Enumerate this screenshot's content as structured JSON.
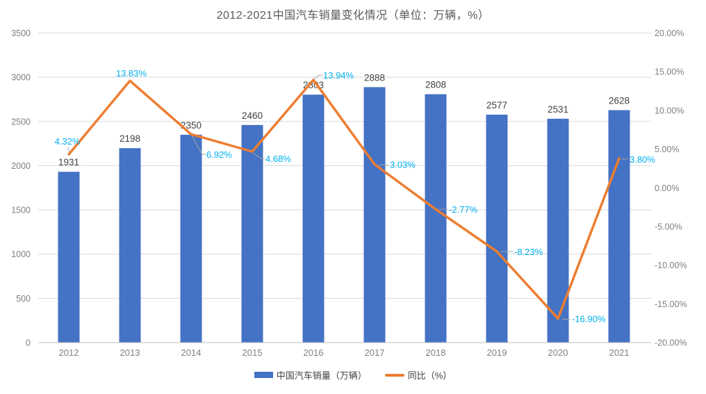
{
  "title": "2012-2021中国汽车销量变化情况（单位：万辆，%）",
  "colors": {
    "bar": "#4472C4",
    "line": "#ED7D31",
    "pct_label": "#00B0F0",
    "bar_label": "#404040",
    "axis_text": "#7f7f7f",
    "gridline": "#D9D9D9",
    "axis_line": "#BFBFBF",
    "leader_line": "#A6A6A6",
    "title_text": "#595959"
  },
  "chart_data": {
    "type": "bar+line combo",
    "title": "2012-2021中国汽车销量变化情况（单位：万辆，%）",
    "categories": [
      "2012",
      "2013",
      "2014",
      "2015",
      "2016",
      "2017",
      "2018",
      "2019",
      "2020",
      "2021"
    ],
    "series": [
      {
        "name": "中国汽车销量（万辆）",
        "type": "bar",
        "axis": "left",
        "values": [
          1931,
          2198,
          2350,
          2460,
          2803,
          2888,
          2808,
          2577,
          2531,
          2628
        ],
        "labels": [
          "1931",
          "2198",
          "2350",
          "2460",
          "2803",
          "2888",
          "2808",
          "2577",
          "2531",
          "2628"
        ]
      },
      {
        "name": "同比（%）",
        "type": "line",
        "axis": "right",
        "values": [
          4.32,
          13.83,
          6.92,
          4.68,
          13.94,
          3.03,
          -2.77,
          -8.23,
          -16.9,
          3.8
        ],
        "labels": [
          "4.32%",
          "13.83%",
          "6.92%",
          "4.68%",
          "13.94%",
          "3.03%",
          "-2.77%",
          "-8.23%",
          "-16.90%",
          "3.80%"
        ]
      }
    ],
    "left_axis": {
      "min": 0,
      "max": 3500,
      "step": 500,
      "tick_labels": [
        "0",
        "500",
        "1000",
        "1500",
        "2000",
        "2500",
        "3000",
        "3500"
      ]
    },
    "right_axis": {
      "min": -20,
      "max": 20,
      "step": 5,
      "tick_labels": [
        "20.00%",
        "15.00%",
        "10.00%",
        "5.00%",
        "0.00%",
        "-5.00%",
        "-10.00%",
        "-15.00%",
        "-20.00%"
      ]
    },
    "grid": true,
    "legend_position": "bottom",
    "legend": [
      {
        "label": "中国汽车销量（万辆）",
        "swatch": "bar"
      },
      {
        "label": "同比（%）",
        "swatch": "line"
      }
    ]
  }
}
